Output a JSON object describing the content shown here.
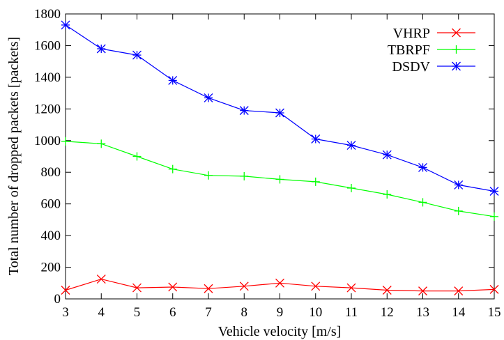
{
  "chart_data": {
    "type": "line",
    "xlabel": "Vehicle velocity [m/s]",
    "ylabel": "Total number of dropped packets [packets]",
    "xlim": [
      3,
      15
    ],
    "ylim": [
      0,
      1800
    ],
    "x_ticks": [
      "3",
      "4",
      "5",
      "6",
      "7",
      "8",
      "9",
      "10",
      "11",
      "12",
      "13",
      "14",
      "15"
    ],
    "y_ticks": [
      "0",
      "200",
      "400",
      "600",
      "800",
      "1000",
      "1200",
      "1400",
      "1600",
      "1800"
    ],
    "legend_position": "top-right",
    "grid": false,
    "x": [
      3,
      4,
      5,
      6,
      7,
      8,
      9,
      10,
      11,
      12,
      13,
      14,
      15
    ],
    "series": [
      {
        "name": "VHRP",
        "color": "#ff0000",
        "marker": "x",
        "values": [
          55,
          125,
          70,
          75,
          65,
          80,
          100,
          80,
          70,
          55,
          50,
          50,
          60
        ]
      },
      {
        "name": "TBRPF",
        "color": "#00ff00",
        "marker": "+",
        "values": [
          995,
          980,
          900,
          820,
          780,
          775,
          755,
          740,
          700,
          660,
          610,
          555,
          520
        ]
      },
      {
        "name": "DSDV",
        "color": "#0000ff",
        "marker": "star",
        "values": [
          1730,
          1580,
          1540,
          1380,
          1270,
          1190,
          1175,
          1010,
          970,
          910,
          830,
          720,
          680
        ]
      }
    ]
  }
}
